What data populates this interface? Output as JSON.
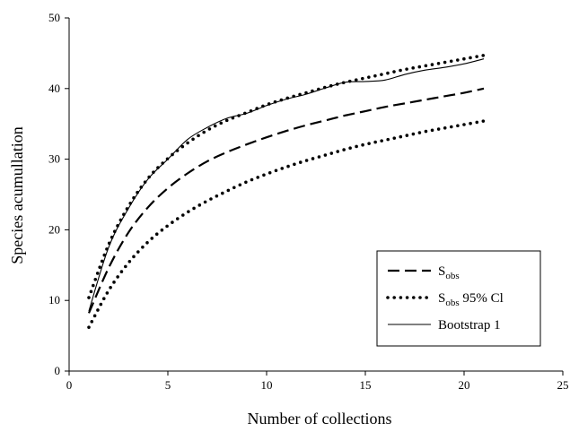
{
  "chart_data": {
    "type": "line",
    "title": "",
    "xlabel": "Number of collections",
    "ylabel": "Species acumullation",
    "xlim": [
      0,
      25
    ],
    "ylim": [
      0,
      50
    ],
    "xticks": [
      0,
      5,
      10,
      15,
      20,
      25
    ],
    "yticks": [
      0,
      10,
      20,
      30,
      40,
      50
    ],
    "grid": false,
    "legend_position": "bottom-right",
    "x": [
      1,
      2,
      3,
      4,
      5,
      6,
      7,
      8,
      9,
      10,
      11,
      12,
      13,
      14,
      15,
      16,
      17,
      18,
      19,
      20,
      21
    ],
    "series": [
      {
        "name": "Sobs",
        "name_parts": {
          "base": "S",
          "sub": "obs",
          "suffix": ""
        },
        "style": "dashed",
        "values": [
          8.2,
          14.6,
          19.6,
          23.2,
          25.9,
          28.0,
          29.7,
          31.0,
          32.1,
          33.1,
          34.0,
          34.8,
          35.5,
          36.2,
          36.8,
          37.4,
          37.9,
          38.4,
          38.9,
          39.4,
          40.0
        ]
      },
      {
        "name": "Sobs 95% Cl (lower)",
        "name_parts": {
          "base": "S",
          "sub": "obs",
          "suffix": " 95% Cl"
        },
        "style": "dotted",
        "legend": true,
        "values": [
          6.2,
          11.4,
          15.3,
          18.3,
          20.6,
          22.5,
          24.1,
          25.5,
          26.8,
          27.9,
          28.9,
          29.8,
          30.6,
          31.4,
          32.1,
          32.7,
          33.3,
          33.9,
          34.4,
          34.9,
          35.4
        ]
      },
      {
        "name": "Sobs 95% Cl (upper)",
        "style": "dotted",
        "legend": false,
        "values": [
          10.4,
          17.9,
          23.3,
          27.3,
          30.1,
          32.3,
          34.1,
          35.5,
          36.6,
          37.7,
          38.6,
          39.4,
          40.2,
          40.9,
          41.5,
          42.1,
          42.7,
          43.2,
          43.7,
          44.2,
          44.7
        ]
      },
      {
        "name": "Bootstrap 1",
        "name_parts": {
          "base": "Bootstrap 1",
          "sub": "",
          "suffix": ""
        },
        "style": "solid",
        "values": [
          8.5,
          17.5,
          23.0,
          27.2,
          30.0,
          32.8,
          34.5,
          35.8,
          36.5,
          37.6,
          38.5,
          39.2,
          40.1,
          40.9,
          41.0,
          41.2,
          42.0,
          42.6,
          43.0,
          43.5,
          44.2
        ]
      }
    ]
  }
}
